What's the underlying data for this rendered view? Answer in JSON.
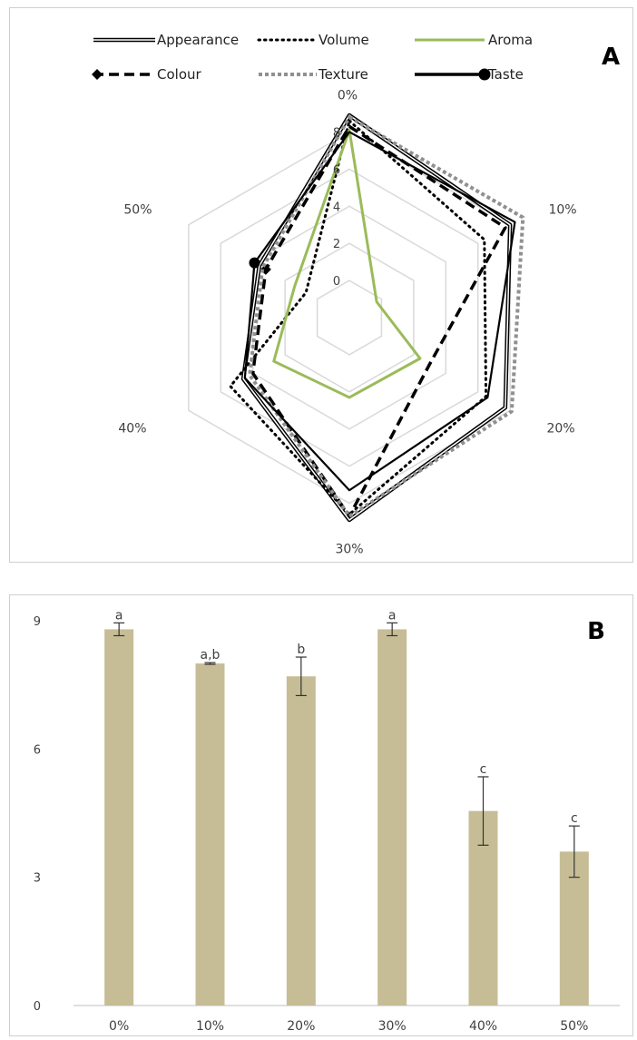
{
  "chart_data": [
    {
      "type": "radar",
      "panel_label": "A",
      "categories": [
        "0%",
        "10%",
        "20%",
        "30%",
        "40%",
        "50%"
      ],
      "radial_ticks": [
        "0",
        "2",
        "4",
        "6",
        "8"
      ],
      "rlim": [
        -2,
        9
      ],
      "grid": true,
      "legend_position": "top",
      "series": [
        {
          "name": "Appearance",
          "values": [
            8.9,
            8.0,
            7.7,
            8.9,
            4.6,
            3.6
          ],
          "style": "double",
          "color": "#000000"
        },
        {
          "name": "Volume",
          "values": [
            8.6,
            6.4,
            6.5,
            8.6,
            5.4,
            0.7
          ],
          "style": "dotted",
          "color": "#000000"
        },
        {
          "name": "Aroma",
          "values": [
            8.1,
            -0.3,
            2.4,
            2.3,
            2.7,
            1.4
          ],
          "style": "solid",
          "color": "#9bbb59"
        },
        {
          "name": "Colour",
          "values": [
            8.3,
            7.7,
            3.0,
            8.7,
            4.0,
            3.2
          ],
          "style": "dashed",
          "color": "#000000"
        },
        {
          "name": "Texture",
          "values": [
            8.8,
            8.8,
            8.1,
            8.7,
            4.2,
            3.4
          ],
          "style": "gray-dotted",
          "color": "#909090"
        },
        {
          "name": "Taste",
          "values": [
            8.0,
            8.3,
            6.6,
            7.3,
            4.5,
            3.9
          ],
          "style": "solid-thick",
          "color": "#000000"
        }
      ]
    },
    {
      "type": "bar",
      "panel_label": "B",
      "categories": [
        "0%",
        "10%",
        "20%",
        "30%",
        "40%",
        "50%"
      ],
      "values": [
        8.8,
        8.0,
        7.7,
        8.8,
        4.55,
        3.6
      ],
      "errors": [
        0.15,
        0.02,
        0.45,
        0.15,
        0.8,
        0.6
      ],
      "significance_letters": [
        "a",
        "a,b",
        "b",
        "a",
        "c",
        "c"
      ],
      "yticks": [
        "0",
        "3",
        "6",
        "9"
      ],
      "ylim": [
        0,
        9
      ],
      "bar_color": "#c6bd96",
      "grid": false
    }
  ]
}
